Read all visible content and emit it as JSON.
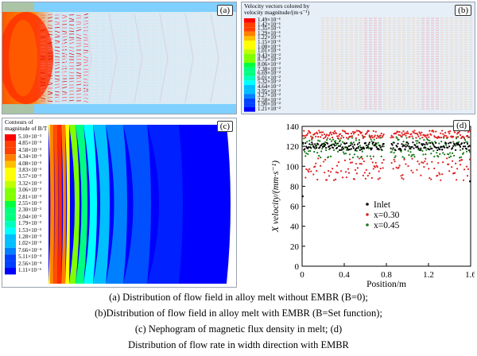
{
  "panels": {
    "a": {
      "label": "(a)"
    },
    "b": {
      "label": "(b)",
      "legend_title": [
        "Velocity vectors colored by",
        "velocity magnitude/(m·s⁻¹)"
      ],
      "legend_values": [
        "1.49×10⁻¹",
        "1.42×10⁻¹",
        "1.35×10⁻¹",
        "1.29×10⁻¹",
        "1.22×10⁻¹",
        "1.15×10⁻¹",
        "1.08×10⁻¹",
        "1.01×10⁻¹",
        "9.43×10⁻²",
        "8.75×10⁻²",
        "8.06×10⁻²",
        "7.38×10⁻²",
        "6.69×10⁻²",
        "6.01×10⁻²",
        "5.32×10⁻²",
        "4.64×10⁻²",
        "3.95×10⁻²",
        "3.27×10⁻²",
        "2.58×10⁻²",
        "1.90×10⁻²",
        "1.21×10⁻²"
      ]
    },
    "c": {
      "label": "(c)",
      "legend_title": [
        "Contours of",
        "magnitude of B/T"
      ],
      "legend_values": [
        "5.10×10⁻³",
        "4.85×10⁻³",
        "4.58×10⁻³",
        "4.34×10⁻³",
        "4.08×10⁻³",
        "3.83×10⁻³",
        "3.57×10⁻³",
        "3.32×10⁻³",
        "3.06×10⁻³",
        "2.81×10⁻³",
        "2.55×10⁻³",
        "2.30×10⁻³",
        "2.04×10⁻³",
        "1.79×10⁻³",
        "1.53×10⁻³",
        "1.28×10⁻³",
        "1.02×10⁻³",
        "7.66×10⁻⁴",
        "5.11×10⁻⁴",
        "2.56×10⁻⁴",
        "1.11×10⁻⁶"
      ]
    },
    "d": {
      "label": "(d)"
    }
  },
  "chart_data": {
    "type": "scatter",
    "xlabel": "Position/m",
    "ylabel": "X velocity/(mm·s⁻¹)",
    "xlim": [
      0,
      1.6
    ],
    "ylim": [
      0,
      140
    ],
    "xticks": [
      "0",
      "0.4",
      "0.8",
      "1.2",
      "1.6"
    ],
    "yticks": [
      "0",
      "20",
      "40",
      "60",
      "80",
      "100",
      "120",
      "140"
    ],
    "legend_position": "center-right",
    "series": [
      {
        "name": "Inlet",
        "color": "#000000",
        "band": [
          116,
          124
        ],
        "edges": [
          70,
          85
        ]
      },
      {
        "name": "x=0.30",
        "color": "#e02020",
        "band_upper": [
          128,
          136
        ],
        "band_lower": [
          86,
          108
        ]
      },
      {
        "name": "x=0.45",
        "color": "#1a7a1a",
        "band": [
          108,
          130
        ]
      }
    ]
  },
  "captions": [
    "(a)  Distribution of flow field in alloy melt without EMBR (B=0);",
    "(b)Distribution of flow field in alloy melt with EMBR (B=Set function);",
    "(c)  Nephogram of magnetic flux density in melt;  (d)",
    "Distribution of flow rate in width direction with EMBR"
  ],
  "colors": {
    "jet": [
      "#ff0000",
      "#ff4000",
      "#ff8000",
      "#ffbf00",
      "#ffff00",
      "#bfff00",
      "#80ff00",
      "#00ff40",
      "#00ff80",
      "#00ffbf",
      "#00ffff",
      "#00bfff",
      "#0080ff",
      "#0040ff",
      "#0000ff"
    ]
  }
}
